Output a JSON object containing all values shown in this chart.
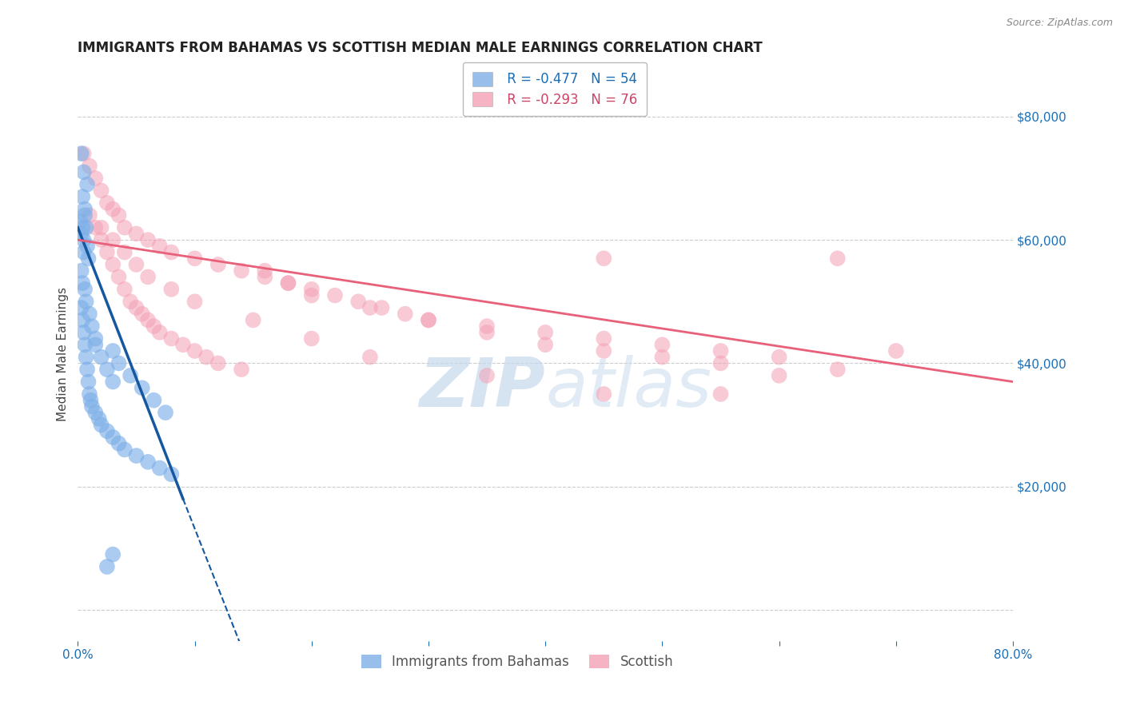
{
  "title": "IMMIGRANTS FROM BAHAMAS VS SCOTTISH MEDIAN MALE EARNINGS CORRELATION CHART",
  "source_text": "Source: ZipAtlas.com",
  "ylabel": "Median Male Earnings",
  "xlim": [
    0.0,
    80.0
  ],
  "ylim": [
    -5000,
    88000
  ],
  "yticks": [
    0,
    20000,
    40000,
    60000,
    80000
  ],
  "ytick_labels": [
    "",
    "$20,000",
    "$40,000",
    "$60,000",
    "$80,000"
  ],
  "xticks": [
    0.0,
    10.0,
    20.0,
    30.0,
    40.0,
    50.0,
    60.0,
    70.0,
    80.0
  ],
  "xtick_labels": [
    "0.0%",
    "",
    "",
    "",
    "",
    "",
    "",
    "",
    "80.0%"
  ],
  "legend_r1": "R = -0.477",
  "legend_n1": "N = 54",
  "legend_r2": "R = -0.293",
  "legend_n2": "N = 76",
  "blue_color": "#7EB0E8",
  "pink_color": "#F4A0B5",
  "blue_line_color": "#1558A0",
  "pink_line_color": "#E8607A",
  "watermark_zip": "ZIP",
  "watermark_atlas": "atlas",
  "blue_scatter_x": [
    0.3,
    0.5,
    0.8,
    0.4,
    0.6,
    0.2,
    0.3,
    0.4,
    0.5,
    0.6,
    0.7,
    0.8,
    0.9,
    0.5,
    0.3,
    0.4,
    0.6,
    0.7,
    1.0,
    1.2,
    1.5,
    0.3,
    0.4,
    0.5,
    0.6,
    0.7,
    0.8,
    0.9,
    1.0,
    1.1,
    1.2,
    1.5,
    1.8,
    2.0,
    2.5,
    3.0,
    3.5,
    4.0,
    5.0,
    6.0,
    7.0,
    8.0,
    3.0,
    3.5,
    4.5,
    5.5,
    6.5,
    7.5,
    1.5,
    2.0,
    2.5,
    3.0,
    2.5,
    3.0
  ],
  "blue_scatter_y": [
    74000,
    71000,
    69000,
    67000,
    65000,
    63000,
    61000,
    62000,
    60000,
    64000,
    62000,
    59000,
    57000,
    58000,
    55000,
    53000,
    52000,
    50000,
    48000,
    46000,
    44000,
    49000,
    47000,
    45000,
    43000,
    41000,
    39000,
    37000,
    35000,
    34000,
    33000,
    32000,
    31000,
    30000,
    29000,
    28000,
    27000,
    26000,
    25000,
    24000,
    23000,
    22000,
    42000,
    40000,
    38000,
    36000,
    34000,
    32000,
    43000,
    41000,
    39000,
    37000,
    7000,
    9000
  ],
  "pink_scatter_x": [
    0.5,
    1.0,
    1.5,
    2.0,
    2.5,
    3.0,
    3.5,
    4.0,
    5.0,
    6.0,
    7.0,
    8.0,
    10.0,
    12.0,
    14.0,
    16.0,
    18.0,
    20.0,
    22.0,
    24.0,
    26.0,
    28.0,
    30.0,
    35.0,
    40.0,
    45.0,
    50.0,
    55.0,
    60.0,
    65.0,
    70.0,
    1.0,
    1.5,
    2.0,
    2.5,
    3.0,
    3.5,
    4.0,
    4.5,
    5.0,
    5.5,
    6.0,
    6.5,
    7.0,
    8.0,
    9.0,
    10.0,
    11.0,
    12.0,
    14.0,
    16.0,
    18.0,
    20.0,
    25.0,
    30.0,
    35.0,
    40.0,
    45.0,
    50.0,
    55.0,
    65.0,
    45.0,
    55.0,
    60.0,
    2.0,
    3.0,
    4.0,
    5.0,
    6.0,
    8.0,
    10.0,
    15.0,
    20.0,
    25.0,
    35.0,
    45.0
  ],
  "pink_scatter_y": [
    74000,
    72000,
    70000,
    68000,
    66000,
    65000,
    64000,
    62000,
    61000,
    60000,
    59000,
    58000,
    57000,
    56000,
    55000,
    54000,
    53000,
    52000,
    51000,
    50000,
    49000,
    48000,
    47000,
    46000,
    45000,
    44000,
    43000,
    42000,
    41000,
    57000,
    42000,
    64000,
    62000,
    60000,
    58000,
    56000,
    54000,
    52000,
    50000,
    49000,
    48000,
    47000,
    46000,
    45000,
    44000,
    43000,
    42000,
    41000,
    40000,
    39000,
    55000,
    53000,
    51000,
    49000,
    47000,
    45000,
    43000,
    42000,
    41000,
    40000,
    39000,
    57000,
    35000,
    38000,
    62000,
    60000,
    58000,
    56000,
    54000,
    52000,
    50000,
    47000,
    44000,
    41000,
    38000,
    35000
  ],
  "blue_line_x0": 0.0,
  "blue_line_y0": 62000,
  "blue_line_x1": 9.0,
  "blue_line_y1": 18000,
  "blue_dash_x0": 9.0,
  "blue_dash_y0": 18000,
  "blue_dash_x1": 14.0,
  "blue_dash_y1": -6000,
  "pink_line_x0": 0.0,
  "pink_line_y0": 60000,
  "pink_line_x1": 80.0,
  "pink_line_y1": 37000,
  "title_fontsize": 12,
  "axis_label_fontsize": 11,
  "tick_fontsize": 11,
  "legend_fontsize": 12,
  "scatter_size": 200,
  "background_color": "#FFFFFF",
  "grid_color": "#CCCCCC"
}
